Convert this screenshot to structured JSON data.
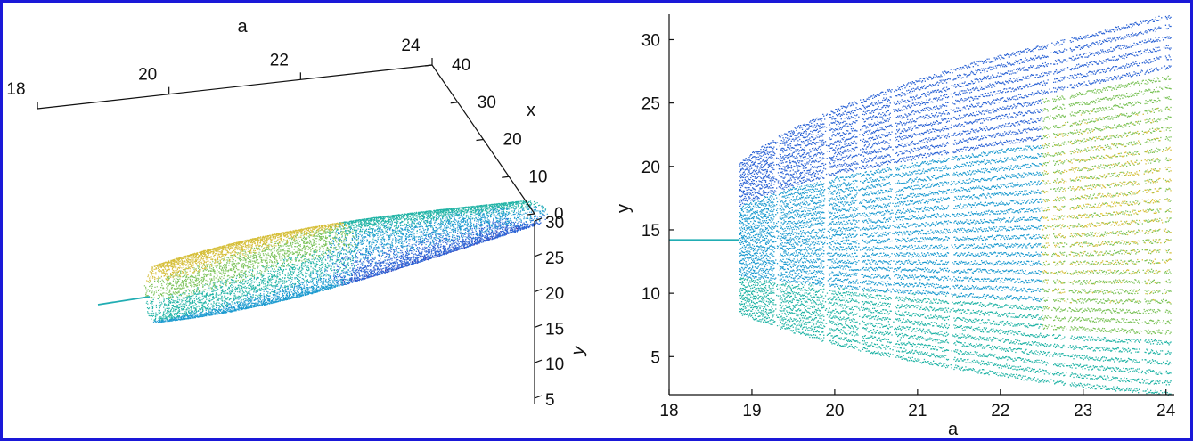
{
  "frame": {
    "border_color": "#1a18d8"
  },
  "chart_data": [
    {
      "type": "scatter",
      "projection": "3d",
      "xlabel": "a",
      "ylabel": "x",
      "zlabel": "y",
      "a_ticks": [
        "18",
        "20",
        "22",
        "24"
      ],
      "x_ticks": [
        "40",
        "30",
        "20",
        "10",
        "0"
      ],
      "y_ticks": [
        "30",
        "25",
        "20",
        "15",
        "10",
        "5"
      ],
      "alim": [
        18,
        24
      ],
      "xlim": [
        0,
        40
      ],
      "ylim": [
        5,
        30
      ],
      "colormap": [
        "#3b2aa8",
        "#2f66d6",
        "#1d9bd0",
        "#22b4a6",
        "#7cc35a",
        "#d6bf3a",
        "#f6d735"
      ],
      "grid": false
    },
    {
      "type": "scatter",
      "xlabel": "a",
      "ylabel": "y",
      "x_ticks": [
        "18",
        "19",
        "20",
        "21",
        "22",
        "23",
        "24"
      ],
      "y_ticks": [
        "5",
        "10",
        "15",
        "20",
        "25",
        "30"
      ],
      "xlim": [
        18,
        24.1
      ],
      "ylim": [
        2,
        32
      ],
      "grid": false,
      "colormap": [
        "#3b2aa8",
        "#2f66d6",
        "#1d9bd0",
        "#22b4a6",
        "#7cc35a",
        "#d6bf3a",
        "#f6d735"
      ],
      "fixed_point": {
        "a_start": 18,
        "a_end": 18.85,
        "y": 14.2
      },
      "bifurcation_a": 18.85,
      "envelope": {
        "a": [
          18.85,
          19,
          19.5,
          20,
          20.5,
          21,
          21.5,
          22,
          22.5,
          23,
          23.5,
          24
        ],
        "upper": [
          20.2,
          21.0,
          22.9,
          24.4,
          25.6,
          26.7,
          27.7,
          28.6,
          29.4,
          30.2,
          31.0,
          31.8
        ],
        "lower": [
          8.5,
          8.1,
          7.0,
          6.1,
          5.3,
          4.7,
          4.1,
          3.6,
          3.1,
          2.7,
          2.4,
          2.1
        ]
      },
      "periodic_windows_a": [
        19.3,
        19.9,
        20.3,
        20.7,
        21.4,
        22.6,
        22.8,
        23.7,
        23.95
      ]
    }
  ]
}
